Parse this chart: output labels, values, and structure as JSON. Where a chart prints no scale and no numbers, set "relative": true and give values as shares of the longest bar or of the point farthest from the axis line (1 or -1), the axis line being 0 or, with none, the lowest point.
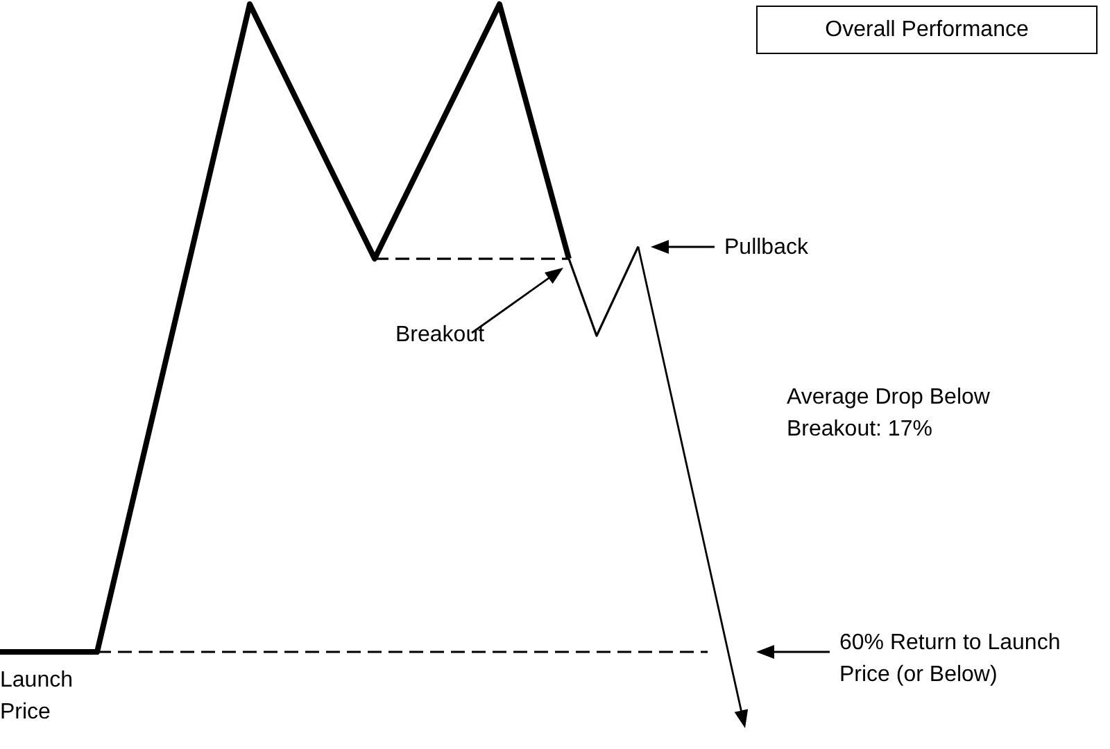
{
  "chart_data": {
    "type": "line",
    "title": "Overall Performance",
    "relative": true,
    "legend": false,
    "marker": "none",
    "categories": [
      null,
      null,
      null,
      null,
      null,
      null,
      null,
      null,
      null,
      null,
      null,
      null,
      null,
      null,
      null,
      null,
      null,
      null,
      null,
      null,
      null,
      null,
      null,
      null,
      null,
      null,
      null,
      null,
      null,
      null,
      null,
      null,
      null,
      null,
      null,
      null,
      null,
      null,
      null,
      null,
      null,
      null,
      null,
      null,
      null,
      null,
      null,
      null,
      null,
      null,
      null,
      null,
      null,
      null,
      null,
      null,
      null,
      null,
      null,
      null,
      null,
      null,
      null,
      null,
      null,
      null,
      null,
      null,
      null,
      null,
      null,
      null,
      null,
      null,
      null,
      null,
      null,
      null,
      null,
      null,
      null
    ],
    "series": [
      {
        "color": "#000000",
        "line_style": "solid",
        "values": [
          0,
          null,
          null,
          null,
          null,
          null,
          null,
          0,
          null,
          null,
          null,
          null,
          null,
          null,
          null,
          null,
          null,
          null,
          1,
          null,
          null,
          null,
          null,
          null,
          null,
          null,
          null,
          0.607,
          null,
          null,
          null,
          null,
          null,
          null,
          null,
          null,
          1,
          null,
          null,
          null,
          null,
          0.607,
          null,
          null,
          null,
          null,
          null,
          null,
          null,
          null,
          null,
          null,
          null,
          null,
          null,
          null,
          null,
          null,
          null,
          null,
          null,
          null,
          null,
          null,
          null,
          null,
          null,
          null,
          null,
          null,
          null,
          null,
          null,
          null,
          null,
          null,
          null,
          null,
          null,
          null,
          null
        ]
      },
      {
        "color": "#000000",
        "line_style": "solid",
        "values": [
          null,
          null,
          null,
          null,
          null,
          null,
          null,
          null,
          null,
          null,
          null,
          null,
          null,
          null,
          null,
          null,
          null,
          null,
          null,
          null,
          null,
          null,
          null,
          null,
          null,
          null,
          null,
          null,
          null,
          null,
          null,
          null,
          null,
          null,
          null,
          null,
          null,
          null,
          null,
          null,
          null,
          0.607,
          null,
          0.488,
          null,
          null,
          0.626,
          null,
          null,
          null,
          null,
          null,
          null,
          null,
          null,
          null,
          null,
          null,
          null,
          null,
          null,
          null,
          null,
          null,
          null,
          null,
          null,
          null,
          null,
          null,
          null,
          null,
          null,
          null,
          null,
          null,
          null,
          null,
          null,
          null,
          null
        ]
      },
      {
        "color": "#000000",
        "line_style": "dashed",
        "values": [
          null,
          null,
          null,
          null,
          null,
          null,
          null,
          null,
          null,
          null,
          null,
          null,
          null,
          null,
          null,
          null,
          null,
          null,
          null,
          null,
          null,
          null,
          null,
          null,
          null,
          null,
          null,
          0.607,
          null,
          null,
          null,
          null,
          null,
          null,
          null,
          null,
          null,
          null,
          null,
          null,
          null,
          0.607,
          null,
          null,
          null,
          null,
          null,
          null,
          null,
          null,
          null,
          null,
          null,
          null,
          null,
          null,
          null,
          null,
          null,
          null,
          null,
          null,
          null,
          null,
          null,
          null,
          null,
          null,
          null,
          null,
          null,
          null,
          null,
          null,
          null,
          null,
          null,
          null,
          null,
          null,
          null
        ]
      },
      {
        "color": "#000000",
        "line_style": "dashed",
        "values": [
          null,
          null,
          null,
          null,
          null,
          null,
          null,
          0,
          null,
          null,
          null,
          null,
          null,
          null,
          null,
          null,
          null,
          null,
          null,
          null,
          null,
          null,
          null,
          null,
          null,
          null,
          null,
          null,
          null,
          null,
          null,
          null,
          null,
          null,
          null,
          null,
          null,
          null,
          null,
          null,
          null,
          null,
          null,
          null,
          null,
          null,
          null,
          null,
          null,
          null,
          null,
          0,
          null,
          null,
          null,
          null,
          null,
          null,
          null,
          null,
          null,
          null,
          null,
          null,
          null,
          null,
          null,
          null,
          null,
          null,
          null,
          null,
          null,
          null,
          null,
          null,
          null,
          null,
          null,
          null,
          null
        ]
      }
    ],
    "annotations": [
      "Breakout",
      "Pullback",
      "60% Return to Launch Price (or Below)",
      "Launch Price",
      "Average Drop Below Breakout: 17%"
    ]
  }
}
